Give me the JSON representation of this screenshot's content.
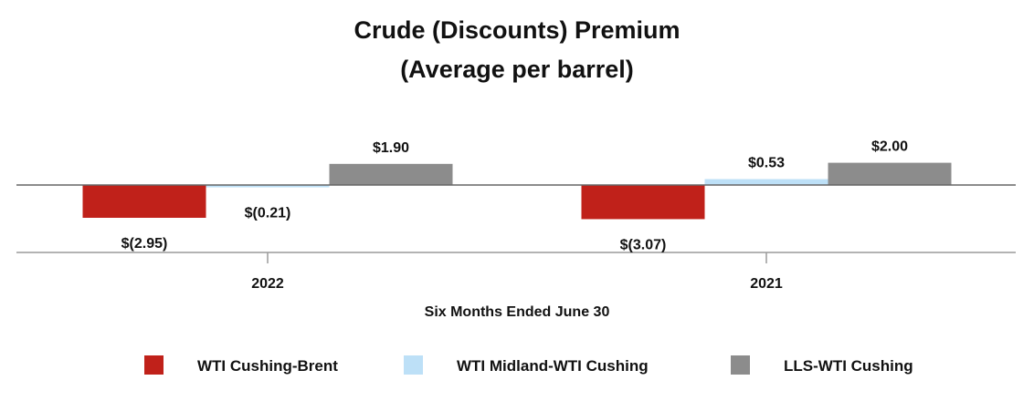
{
  "chart_data": {
    "type": "bar",
    "title": "Crude (Discounts) Premium",
    "subtitle": "(Average per barrel)",
    "xlabel": "Six Months Ended June 30",
    "ylabel": "",
    "categories": [
      "2022",
      "2021"
    ],
    "series": [
      {
        "name": "WTI Cushing-Brent",
        "values": [
          -2.95,
          -3.07
        ],
        "labels": [
          "$(2.95)",
          "$(3.07)"
        ],
        "color": "#c0211a"
      },
      {
        "name": "WTI Midland-WTI Cushing",
        "values": [
          -0.21,
          0.53
        ],
        "labels": [
          "$(0.21)",
          "$0.53"
        ],
        "color": "#bde0f7"
      },
      {
        "name": "LLS-WTI Cushing",
        "values": [
          1.9,
          2.0
        ],
        "labels": [
          "$1.90",
          "$2.00"
        ],
        "color": "#8c8c8c"
      }
    ],
    "legend_position": "bottom",
    "grid": false,
    "baseline_color": "#666666",
    "axis_color": "#9a9a9a"
  }
}
